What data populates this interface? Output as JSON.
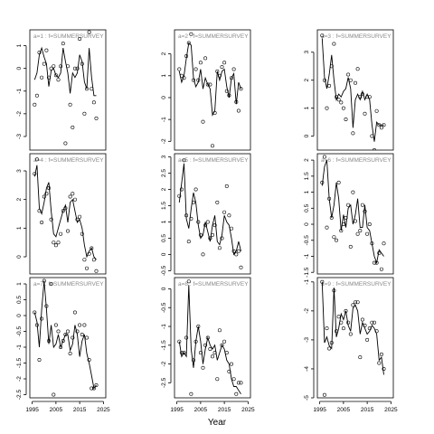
{
  "figure": {
    "xlabel": "Year",
    "x_ticks": [
      1995,
      2005,
      2015,
      2025
    ],
    "xlim": [
      1994,
      2026
    ]
  },
  "chart_data": [
    {
      "type": "line",
      "panel": "a=1",
      "label": "a=1  :  f=SUMMERSURVEY",
      "ylim": [
        -3.6,
        1.7
      ],
      "y_ticks": [
        -3,
        -2,
        -1,
        0,
        1
      ],
      "grid": false,
      "x": [
        1996,
        1997,
        1998,
        1999,
        2000,
        2001,
        2002,
        2003,
        2004,
        2005,
        2006,
        2007,
        2008,
        2009,
        2010,
        2011,
        2012,
        2013,
        2014,
        2015,
        2016,
        2017,
        2018,
        2019,
        2020,
        2021,
        2022
      ],
      "series": [
        {
          "style": "points",
          "values": [
            -1.6,
            -1.2,
            0.7,
            -0.4,
            0.2,
            0.8,
            -0.4,
            0.0,
            0.1,
            -0.3,
            -0.5,
            0.1,
            1.1,
            -3.3,
            0.1,
            -1.6,
            -2.6,
            0.0,
            0.0,
            1.3,
            0.2,
            -2.0,
            -0.9,
            1.6,
            -0.9,
            -1.5,
            -2.2
          ]
        },
        {
          "style": "line",
          "values": [
            -0.5,
            -0.2,
            0.6,
            0.9,
            0.5,
            0.2,
            -0.8,
            -0.1,
            0.0,
            -0.3,
            -0.4,
            -0.2,
            0.9,
            0.3,
            -0.2,
            -1.1,
            -0.2,
            -0.4,
            -0.2,
            0.6,
            0.3,
            -0.6,
            -0.9,
            0.9,
            -0.4,
            -1.2,
            -1.2
          ]
        }
      ]
    },
    {
      "type": "line",
      "panel": "a=4",
      "label": "a=4  :  f=SUMMERSURVEY",
      "ylim": [
        -0.6,
        3.6
      ],
      "y_ticks": [
        0,
        1,
        2,
        3
      ],
      "grid": false,
      "x": [
        1996,
        1997,
        1998,
        1999,
        2000,
        2001,
        2002,
        2003,
        2004,
        2005,
        2006,
        2007,
        2008,
        2009,
        2010,
        2011,
        2012,
        2013,
        2014,
        2015,
        2016,
        2017,
        2018,
        2019,
        2020,
        2021,
        2022
      ],
      "series": [
        {
          "style": "points",
          "values": [
            2.9,
            3.4,
            1.6,
            1.2,
            2.1,
            2.2,
            2.4,
            1.3,
            0.5,
            0.4,
            0.5,
            0.8,
            1.6,
            1.7,
            0.9,
            2.1,
            2.2,
            2.0,
            1.3,
            1.4,
            0.8,
            -0.1,
            -0.4,
            0.1,
            0.3,
            -0.1,
            -0.5
          ]
        },
        {
          "style": "line",
          "values": [
            2.8,
            3.2,
            1.7,
            1.5,
            1.9,
            2.4,
            2.6,
            1.6,
            0.8,
            0.7,
            1.0,
            1.3,
            1.6,
            1.8,
            1.2,
            1.9,
            2.0,
            1.6,
            1.2,
            1.3,
            1.0,
            0.4,
            0.0,
            0.2,
            0.3,
            0.0,
            -0.1
          ]
        }
      ]
    },
    {
      "type": "line",
      "panel": "a=7",
      "label": "a=7  :  f=SUMMERSURVEY",
      "ylim": [
        -2.6,
        1.2
      ],
      "y_ticks": [
        -2.5,
        -2.0,
        -1.5,
        -1.0,
        -0.5,
        0.0,
        0.5,
        1.0
      ],
      "grid": false,
      "x": [
        1996,
        1997,
        1998,
        1999,
        2000,
        2001,
        2002,
        2003,
        2004,
        2005,
        2006,
        2007,
        2008,
        2009,
        2010,
        2011,
        2012,
        2013,
        2014,
        2015,
        2016,
        2017,
        2018,
        2019,
        2020,
        2021,
        2022
      ],
      "series": [
        {
          "style": "points",
          "values": [
            0.1,
            -0.3,
            -1.4,
            -0.1,
            1.1,
            0.3,
            -0.8,
            1.0,
            -2.5,
            -0.3,
            -0.5,
            -1.0,
            -0.8,
            -0.6,
            -0.5,
            -1.2,
            -0.7,
            0.1,
            -0.5,
            -0.3,
            -0.6,
            -0.3,
            -0.7,
            -1.4,
            -2.3,
            -2.3,
            -2.2
          ]
        },
        {
          "style": "line",
          "values": [
            0.1,
            -0.2,
            -1.0,
            0.2,
            1.1,
            0.2,
            -0.9,
            -0.3,
            -1.0,
            -0.9,
            -0.6,
            -1.0,
            -0.8,
            -0.6,
            -0.6,
            -1.1,
            -0.9,
            -0.3,
            -0.6,
            -1.3,
            -0.8,
            -0.6,
            -1.2,
            -1.5,
            -1.9,
            -2.3,
            -2.2
          ]
        }
      ]
    },
    {
      "type": "line",
      "panel": "a=2",
      "label": "a=2  :  f=SUMMERSURVEY",
      "ylim": [
        -2.4,
        3.1
      ],
      "y_ticks": [
        -2,
        -1,
        0,
        1,
        2
      ],
      "grid": false,
      "x": [
        1996,
        1997,
        1998,
        1999,
        2000,
        2001,
        2002,
        2003,
        2004,
        2005,
        2006,
        2007,
        2008,
        2009,
        2010,
        2011,
        2012,
        2013,
        2014,
        2015,
        2016,
        2017,
        2018,
        2019,
        2020,
        2021,
        2022
      ],
      "series": [
        {
          "style": "points",
          "values": [
            1.3,
            1.0,
            0.9,
            1.9,
            2.5,
            2.9,
            0.8,
            1.3,
            0.8,
            1.6,
            -1.1,
            1.8,
            0.6,
            0.6,
            -2.2,
            -0.7,
            1.2,
            1.0,
            1.4,
            1.6,
            0.3,
            0.1,
            0.9,
            1.3,
            -0.2,
            -0.6,
            0.4
          ]
        },
        {
          "style": "line",
          "values": [
            1.2,
            0.7,
            1.0,
            1.8,
            2.5,
            2.4,
            0.9,
            0.5,
            0.7,
            1.3,
            0.4,
            0.9,
            0.6,
            0.4,
            -0.8,
            -0.6,
            1.2,
            0.8,
            1.2,
            1.3,
            0.5,
            0.0,
            0.9,
            1.1,
            -0.3,
            0.7,
            0.4
          ]
        }
      ]
    },
    {
      "type": "line",
      "panel": "a=5",
      "label": "a=5  :  f=SUMMERSURVEY",
      "ylim": [
        -0.6,
        3.1
      ],
      "y_ticks": [
        -0.5,
        0.0,
        0.5,
        1.0,
        1.5,
        2.0,
        2.5,
        3.0
      ],
      "grid": false,
      "x": [
        1996,
        1997,
        1998,
        1999,
        2000,
        2001,
        2002,
        2003,
        2004,
        2005,
        2006,
        2007,
        2008,
        2009,
        2010,
        2011,
        2012,
        2013,
        2014,
        2015,
        2016,
        2017,
        2018,
        2019,
        2020,
        2021,
        2022
      ],
      "series": [
        {
          "style": "points",
          "values": [
            1.8,
            2.0,
            2.9,
            1.2,
            0.4,
            1.1,
            1.6,
            2.0,
            1.0,
            0.6,
            0.0,
            0.9,
            1.0,
            0.5,
            0.6,
            0.9,
            1.6,
            0.2,
            0.5,
            1.3,
            2.1,
            1.2,
            0.8,
            0.1,
            0.0,
            0.1,
            -0.4
          ]
        },
        {
          "style": "line",
          "values": [
            1.6,
            2.2,
            2.8,
            1.1,
            0.8,
            1.4,
            1.9,
            1.6,
            0.9,
            0.5,
            0.6,
            1.0,
            0.7,
            0.4,
            0.9,
            1.2,
            0.4,
            0.3,
            0.6,
            1.2,
            1.0,
            0.9,
            0.5,
            0.0,
            0.1,
            0.4,
            0.1
          ]
        }
      ]
    },
    {
      "type": "line",
      "panel": "a=8",
      "label": "a=8  :  f=SUMMERSURVEY",
      "ylim": [
        -2.9,
        0.3
      ],
      "y_ticks": [
        -2.5,
        -2.0,
        -1.5,
        -1.0,
        -0.5,
        0.0
      ],
      "grid": false,
      "x": [
        1996,
        1997,
        1998,
        1999,
        2000,
        2001,
        2002,
        2003,
        2004,
        2005,
        2006,
        2007,
        2008,
        2009,
        2010,
        2011,
        2012,
        2013,
        2014,
        2015,
        2016,
        2017,
        2018,
        2019,
        2020,
        2021,
        2022
      ],
      "series": [
        {
          "style": "points",
          "values": [
            -1.4,
            -1.7,
            -1.7,
            -1.3,
            0.2,
            -2.8,
            -1.9,
            -1.4,
            -1.0,
            -1.7,
            -2.1,
            -1.5,
            -1.3,
            -1.6,
            -1.8,
            -1.7,
            -2.4,
            -1.1,
            -1.5,
            -1.4,
            -1.7,
            -2.2,
            -2.0,
            -2.4,
            -2.8,
            -2.5,
            -2.5
          ]
        },
        {
          "style": "line",
          "values": [
            -1.4,
            -1.8,
            -1.7,
            -1.8,
            0.1,
            -1.6,
            -2.1,
            -1.4,
            -1.0,
            -1.4,
            -2.0,
            -1.6,
            -1.3,
            -1.5,
            -1.6,
            -1.5,
            -1.9,
            -1.7,
            -1.5,
            -1.6,
            -1.9,
            -2.0,
            -2.4,
            -2.6,
            -2.6,
            -2.7,
            -2.8
          ]
        }
      ]
    },
    {
      "type": "line",
      "panel": "a=3",
      "label": "a=3  :  f=SUMMERSURVEY",
      "ylim": [
        -0.5,
        3.8
      ],
      "y_ticks": [
        0,
        1,
        2,
        3
      ],
      "grid": false,
      "x": [
        1996,
        1997,
        1998,
        1999,
        2000,
        2001,
        2002,
        2003,
        2004,
        2005,
        2006,
        2007,
        2008,
        2009,
        2010,
        2011,
        2012,
        2013,
        2014,
        2015,
        2016,
        2017,
        2018,
        2019,
        2020,
        2021,
        2022
      ],
      "series": [
        {
          "style": "points",
          "values": [
            3.6,
            2.0,
            1.0,
            1.8,
            2.5,
            3.3,
            1.4,
            1.3,
            1.2,
            1.0,
            0.6,
            2.2,
            2.0,
            0.1,
            1.9,
            2.4,
            1.4,
            1.5,
            0.8,
            1.4,
            1.4,
            0.0,
            -0.5,
            0.9,
            0.4,
            0.3,
            0.4
          ]
        },
        {
          "style": "line",
          "values": [
            3.5,
            2.1,
            1.7,
            2.2,
            2.9,
            2.0,
            1.3,
            1.5,
            1.4,
            1.6,
            1.7,
            2.1,
            1.7,
            0.3,
            1.3,
            1.5,
            1.3,
            1.6,
            1.3,
            1.5,
            1.3,
            0.4,
            -0.2,
            0.5,
            0.4,
            0.4,
            0.4
          ]
        }
      ]
    },
    {
      "type": "line",
      "panel": "a=6",
      "label": "a=6  :  f=SUMMERSURVEY",
      "ylim": [
        -1.55,
        2.2
      ],
      "y_ticks": [
        -1.5,
        -1.0,
        -0.5,
        0.0,
        0.5,
        1.0,
        1.5,
        2.0
      ],
      "grid": false,
      "x": [
        1996,
        1997,
        1998,
        1999,
        2000,
        2001,
        2002,
        2003,
        2004,
        2005,
        2006,
        2007,
        2008,
        2009,
        2010,
        2011,
        2012,
        2013,
        2014,
        2015,
        2016,
        2017,
        2018,
        2019,
        2020,
        2021,
        2022
      ],
      "series": [
        {
          "style": "points",
          "values": [
            1.3,
            2.1,
            -0.1,
            0.8,
            0.2,
            -0.4,
            -0.5,
            1.3,
            -0.2,
            0.0,
            0.2,
            0.6,
            -0.7,
            1.0,
            0.1,
            -0.3,
            -0.2,
            0.6,
            0.4,
            -0.3,
            0.0,
            -0.6,
            -1.2,
            -1.2,
            -0.9,
            -1.4,
            -0.6
          ]
        },
        {
          "style": "line",
          "values": [
            1.2,
            1.8,
            2.0,
            0.8,
            0.2,
            0.6,
            1.3,
            0.8,
            -0.2,
            0.3,
            -0.1,
            0.5,
            0.6,
            0.0,
            0.3,
            0.8,
            -0.1,
            -0.1,
            0.6,
            -0.1,
            -0.2,
            -0.6,
            -1.0,
            -1.2,
            -0.8,
            -0.9,
            -1.0
          ]
        }
      ]
    },
    {
      "type": "line",
      "panel": "a=9",
      "label": "a=9  :  f=SUMMERSURVEY",
      "ylim": [
        -5.0,
        -0.85
      ],
      "y_ticks": [
        -5,
        -4,
        -3,
        -2,
        -1
      ],
      "grid": false,
      "x": [
        1996,
        1997,
        1998,
        1999,
        2000,
        2001,
        2002,
        2003,
        2004,
        2005,
        2006,
        2007,
        2008,
        2009,
        2010,
        2011,
        2012,
        2013,
        2014,
        2015,
        2016,
        2017,
        2018,
        2019,
        2020,
        2021,
        2022
      ],
      "series": [
        {
          "style": "points",
          "values": [
            -1.0,
            -4.9,
            -2.6,
            -3.3,
            -3.1,
            -1.3,
            -2.7,
            -2.2,
            -2.4,
            -2.6,
            -2.0,
            -2.4,
            -2.8,
            -1.8,
            -1.7,
            -1.7,
            -3.6,
            -2.3,
            -2.5,
            -3.0,
            -2.6,
            -2.4,
            -2.4,
            -2.7,
            -3.8,
            -3.5,
            -4.0
          ]
        },
        {
          "style": "line",
          "values": [
            -1.0,
            -3.1,
            -2.9,
            -3.2,
            -3.3,
            -1.2,
            -2.9,
            -2.6,
            -2.1,
            -2.3,
            -2.0,
            -2.5,
            -2.7,
            -1.9,
            -1.8,
            -2.0,
            -2.8,
            -2.4,
            -2.6,
            -2.8,
            -2.7,
            -2.5,
            -2.6,
            -2.8,
            -3.7,
            -3.6,
            -4.2
          ]
        }
      ]
    }
  ]
}
